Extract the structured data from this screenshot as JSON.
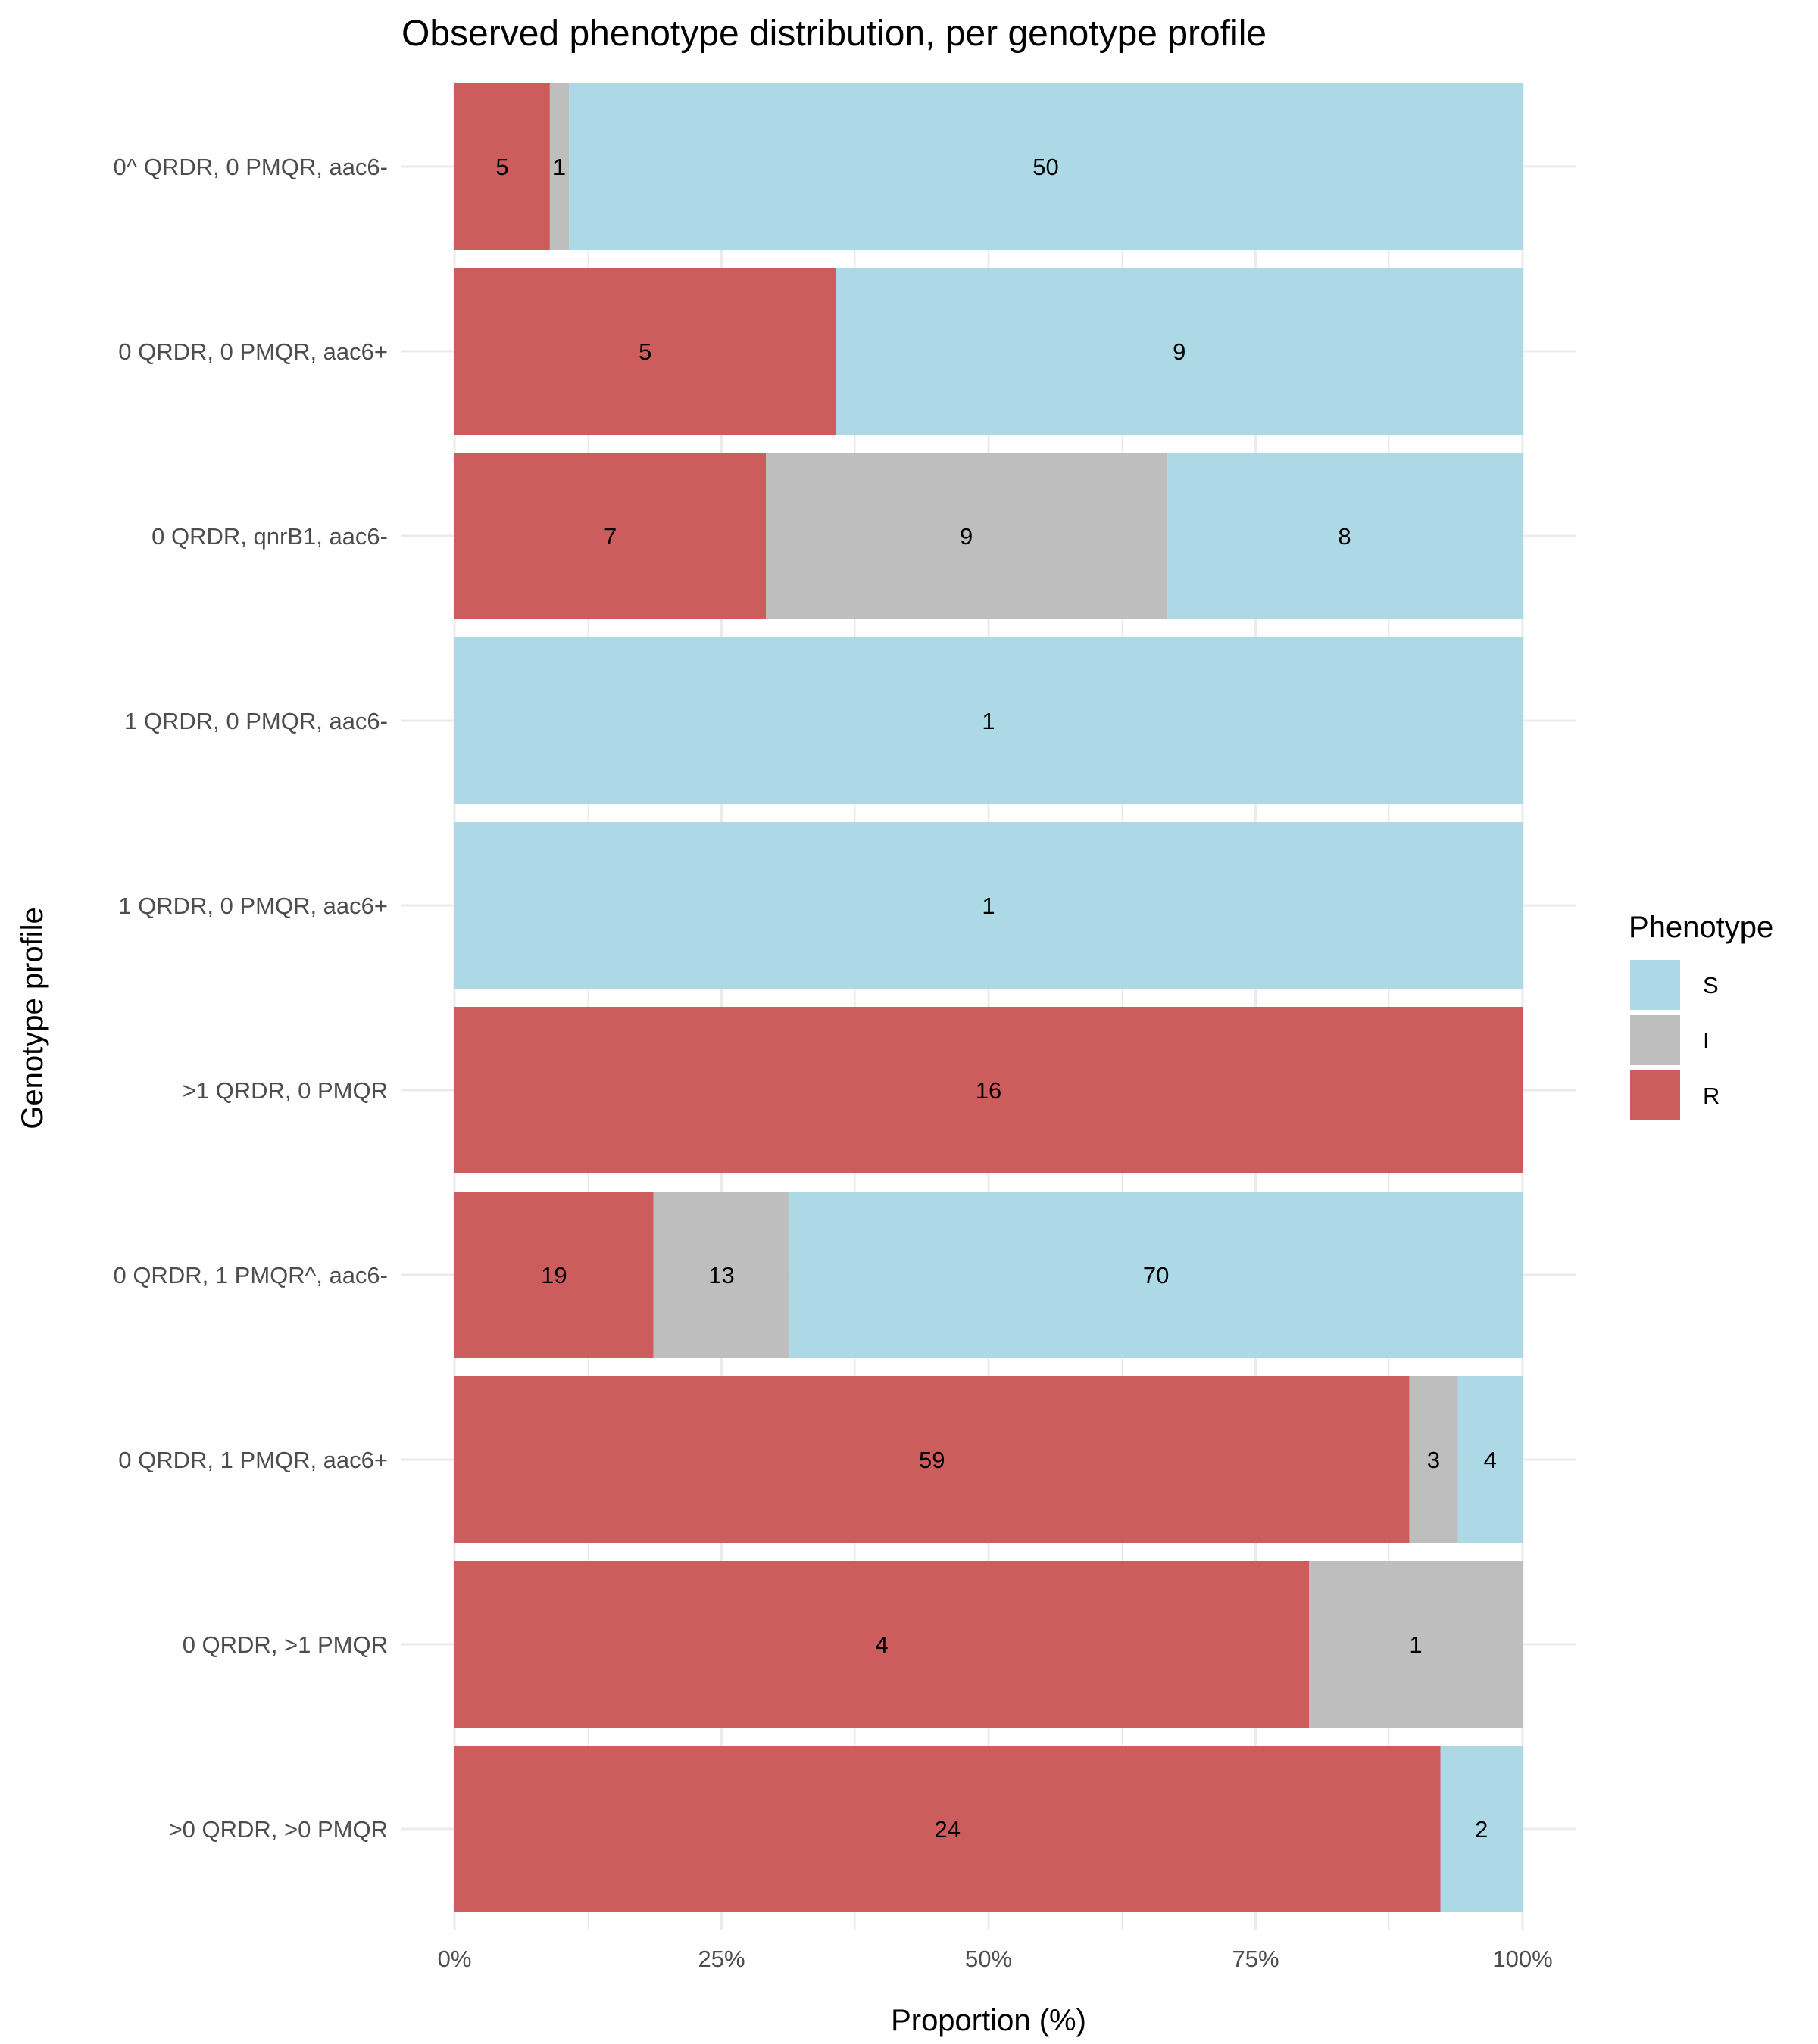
{
  "chart_data": {
    "type": "bar",
    "orientation": "horizontal",
    "stacked": "percent",
    "title": "Observed phenotype distribution, per genotype profile",
    "xlabel": "Proportion (%)",
    "ylabel": "Genotype profile",
    "xlim": [
      0,
      100
    ],
    "x_ticks": [
      "0%",
      "25%",
      "50%",
      "75%",
      "100%"
    ],
    "grid": true,
    "legend_title": "Phenotype",
    "legend_position": "right",
    "categories": [
      "0^ QRDR, 0 PMQR, aac6-",
      "0 QRDR, 0 PMQR, aac6+",
      "0 QRDR, qnrB1, aac6-",
      "1 QRDR, 0 PMQR, aac6-",
      "1 QRDR, 0 PMQR, aac6+",
      ">1 QRDR, 0 PMQR",
      "0 QRDR, 1 PMQR^, aac6-",
      "0 QRDR, 1 PMQR, aac6+",
      "0 QRDR, >1 PMQR",
      ">0 QRDR, >0 PMQR"
    ],
    "series": [
      {
        "name": "R",
        "color": "#CD5C5C",
        "values": [
          5,
          5,
          7,
          0,
          0,
          16,
          19,
          59,
          4,
          24
        ]
      },
      {
        "name": "I",
        "color": "#BEBEBE",
        "values": [
          1,
          0,
          9,
          0,
          0,
          0,
          13,
          3,
          1,
          0
        ]
      },
      {
        "name": "S",
        "color": "#ADD8E6",
        "values": [
          50,
          9,
          8,
          1,
          1,
          0,
          70,
          4,
          0,
          2
        ]
      }
    ],
    "legend_order": [
      "S",
      "I",
      "R"
    ]
  }
}
